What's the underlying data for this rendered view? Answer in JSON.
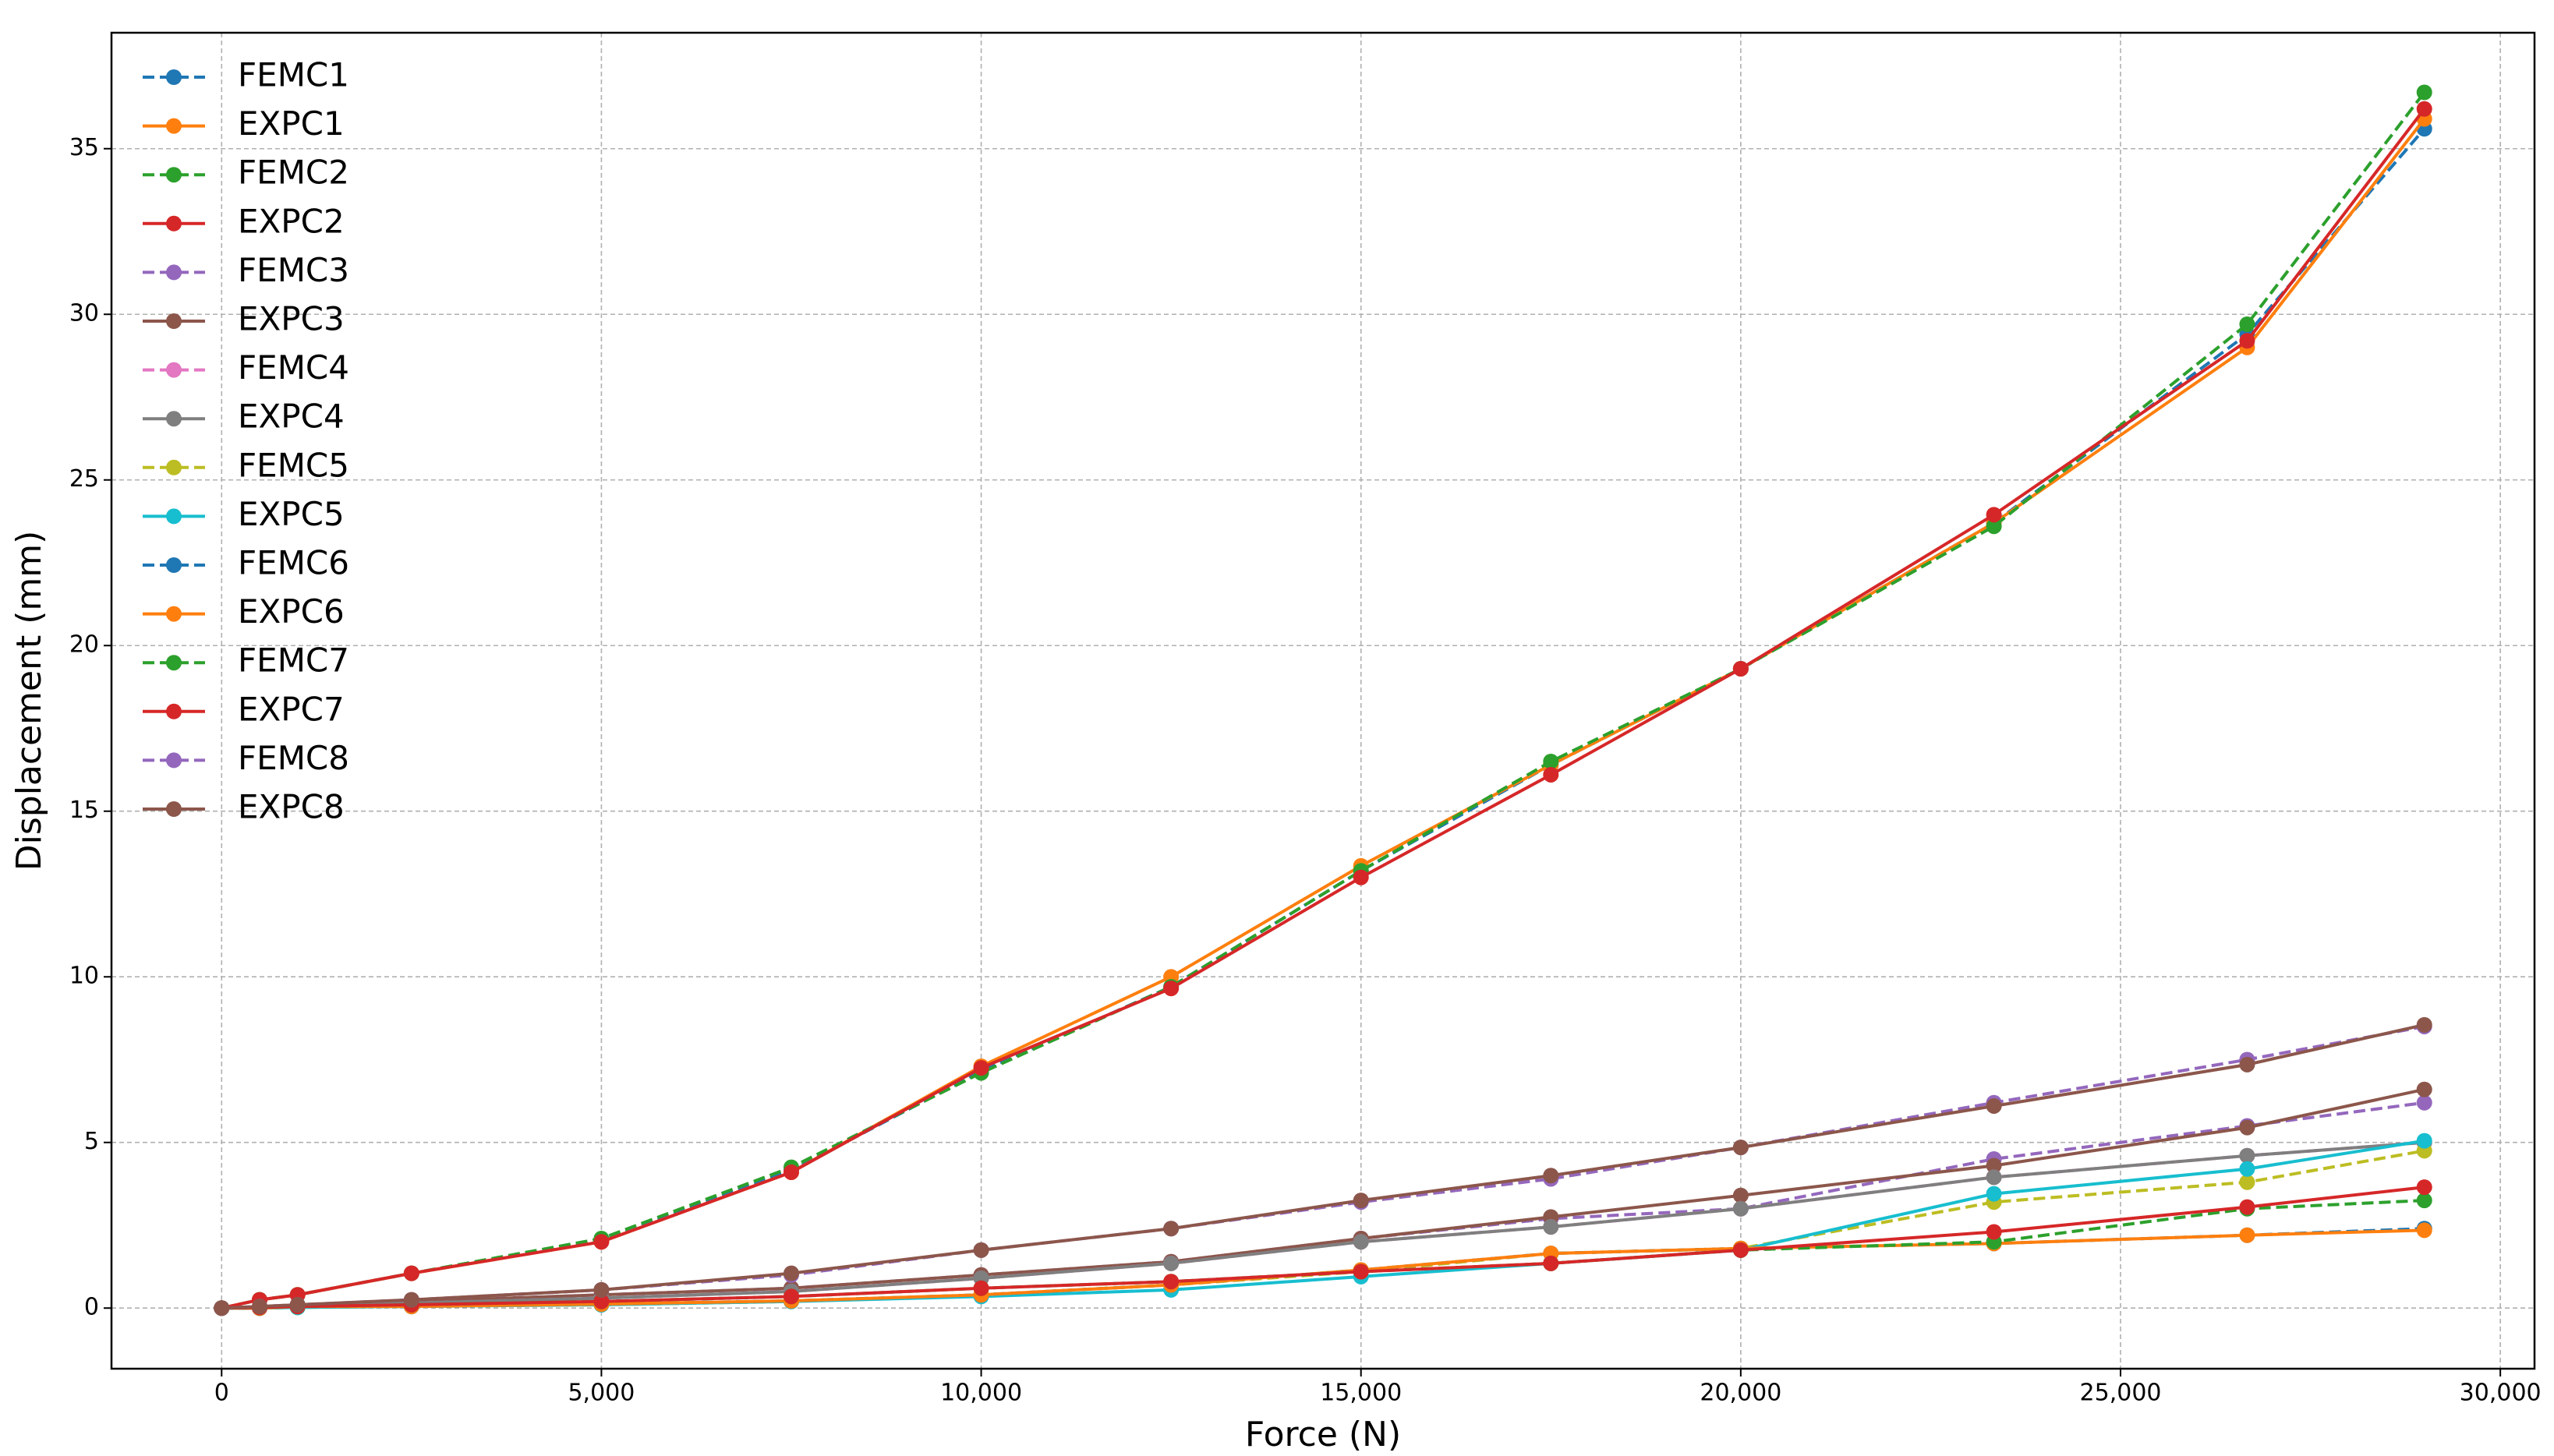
{
  "chart_data": {
    "type": "line",
    "xlabel": "Force (N)",
    "ylabel": "Displacement (mm)",
    "x": [
      0,
      500,
      1000,
      2500,
      5000,
      7500,
      10000,
      12500,
      15000,
      17500,
      20000,
      23333,
      26667,
      29000
    ],
    "xlim": [
      -1450,
      30450
    ],
    "xticks": [
      0,
      {
        "value": 5000,
        "label": "5,000"
      },
      {
        "value": 10000,
        "label": "10,000"
      },
      {
        "value": 15000,
        "label": "15,000"
      },
      {
        "value": 20000,
        "label": "20,000"
      },
      {
        "value": 25000,
        "label": "25,000"
      },
      {
        "value": 30000,
        "label": "30,000"
      }
    ],
    "ylim": [
      -1.83,
      38.5
    ],
    "yticks": [
      0,
      5,
      10,
      15,
      20,
      25,
      30,
      35
    ],
    "grid": true,
    "legend": "upper left",
    "series": [
      {
        "name": "FEMC1",
        "color": "#1f77b4",
        "linestyle": "dashed",
        "values": [
          0,
          0.25,
          0.4,
          1.05,
          2.05,
          4.15,
          7.15,
          9.7,
          13.2,
          16.4,
          19.3,
          23.7,
          29.4,
          35.6
        ]
      },
      {
        "name": "EXPC1",
        "color": "#ff7f0e",
        "linestyle": "solid",
        "values": [
          0,
          0.25,
          0.4,
          1.05,
          2.0,
          4.1,
          7.3,
          10.0,
          13.35,
          16.4,
          19.3,
          23.7,
          29.0,
          35.9
        ]
      },
      {
        "name": "FEMC2",
        "color": "#2ca02c",
        "linestyle": "dashed",
        "values": [
          0,
          0.25,
          0.4,
          1.05,
          2.1,
          4.25,
          7.1,
          9.7,
          13.2,
          16.5,
          19.3,
          23.6,
          29.7,
          36.7
        ]
      },
      {
        "name": "EXPC2",
        "color": "#d62728",
        "linestyle": "solid",
        "values": [
          0,
          0.25,
          0.4,
          1.05,
          2.0,
          4.1,
          7.25,
          9.65,
          13.0,
          16.1,
          19.3,
          23.95,
          29.2,
          36.2
        ]
      },
      {
        "name": "FEMC3",
        "color": "#9467bd",
        "linestyle": "dashed",
        "values": [
          0,
          0.02,
          0.05,
          0.2,
          0.4,
          0.6,
          1.0,
          1.4,
          2.1,
          2.7,
          3.0,
          4.5,
          5.5,
          6.2
        ]
      },
      {
        "name": "EXPC3",
        "color": "#8c564b",
        "linestyle": "solid",
        "values": [
          0,
          0.02,
          0.05,
          0.2,
          0.4,
          0.6,
          1.0,
          1.4,
          2.1,
          2.75,
          3.4,
          4.3,
          5.45,
          6.6
        ]
      },
      {
        "name": "FEMC4",
        "color": "#e377c2",
        "linestyle": "dashed",
        "values": [
          0,
          0,
          0.05,
          0.15,
          0.3,
          0.5,
          0.9,
          1.35,
          2.0,
          2.45,
          3.0,
          3.95,
          4.6,
          5.0
        ]
      },
      {
        "name": "EXPC4",
        "color": "#7f7f7f",
        "linestyle": "solid",
        "values": [
          0,
          0,
          0.05,
          0.15,
          0.3,
          0.5,
          0.9,
          1.35,
          2.0,
          2.45,
          3.0,
          3.95,
          4.6,
          5.0
        ]
      },
      {
        "name": "FEMC5",
        "color": "#bcbd22",
        "linestyle": "dashed",
        "values": [
          0,
          0,
          0.02,
          0.05,
          0.1,
          0.2,
          0.4,
          0.7,
          1.1,
          1.65,
          1.8,
          3.2,
          3.8,
          4.75
        ]
      },
      {
        "name": "EXPC5",
        "color": "#17becf",
        "linestyle": "solid",
        "values": [
          0,
          0,
          0.02,
          0.05,
          0.1,
          0.2,
          0.35,
          0.55,
          0.95,
          1.35,
          1.75,
          3.45,
          4.2,
          5.05
        ]
      },
      {
        "name": "FEMC6",
        "color": "#1f77b4",
        "linestyle": "dashed",
        "values": [
          0,
          0,
          0.05,
          0.05,
          0.12,
          0.22,
          0.4,
          0.7,
          1.15,
          1.65,
          1.8,
          1.95,
          2.2,
          2.4
        ]
      },
      {
        "name": "EXPC6",
        "color": "#ff7f0e",
        "linestyle": "solid",
        "values": [
          0,
          0,
          0.05,
          0.05,
          0.12,
          0.22,
          0.4,
          0.7,
          1.15,
          1.65,
          1.8,
          1.95,
          2.2,
          2.35
        ]
      },
      {
        "name": "FEMC7",
        "color": "#2ca02c",
        "linestyle": "dashed",
        "values": [
          0,
          0.02,
          0.05,
          0.1,
          0.2,
          0.35,
          0.6,
          0.8,
          1.1,
          1.35,
          1.75,
          2.0,
          3.0,
          3.25
        ]
      },
      {
        "name": "EXPC7",
        "color": "#d62728",
        "linestyle": "solid",
        "values": [
          0,
          0.02,
          0.05,
          0.1,
          0.2,
          0.35,
          0.6,
          0.8,
          1.1,
          1.35,
          1.75,
          2.3,
          3.05,
          3.65
        ]
      },
      {
        "name": "FEMC8",
        "color": "#9467bd",
        "linestyle": "dashed",
        "values": [
          0,
          0.05,
          0.1,
          0.25,
          0.55,
          1.0,
          1.75,
          2.4,
          3.2,
          3.9,
          4.85,
          6.2,
          7.5,
          8.5
        ]
      },
      {
        "name": "EXPC8",
        "color": "#8c564b",
        "linestyle": "solid",
        "values": [
          0,
          0.05,
          0.1,
          0.25,
          0.55,
          1.05,
          1.75,
          2.4,
          3.25,
          4.0,
          4.85,
          6.1,
          7.35,
          8.55
        ]
      }
    ]
  }
}
